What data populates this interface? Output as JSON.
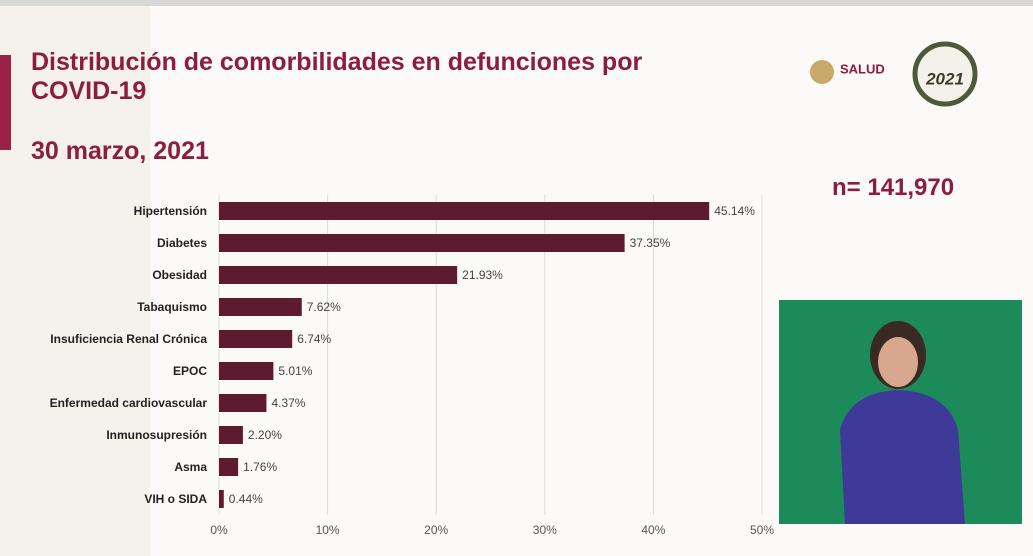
{
  "chart_data": {
    "type": "hbar",
    "title": "Distribución de comorbilidades en defunciones por COVID-19",
    "subtitle": "30 marzo, 2021",
    "annotation": "n= 141,970",
    "logo_text": "SALUD",
    "logo_year": "2021",
    "categories": [
      "Hipertensión",
      "Diabetes",
      "Obesidad",
      "Tabaquismo",
      "Insuficiencia Renal Crónica",
      "EPOC",
      "Enfermedad cardiovascular",
      "Inmunosupresión",
      "Asma",
      "VIH o SIDA"
    ],
    "values": [
      45.14,
      37.35,
      21.93,
      7.62,
      6.74,
      5.01,
      4.37,
      2.2,
      1.76,
      0.44
    ],
    "value_labels": [
      "45.14%",
      "37.35%",
      "21.93%",
      "7.62%",
      "6.74%",
      "5.01%",
      "4.37%",
      "2.20%",
      "1.76%",
      "0.44%"
    ],
    "color": "#5e1a30",
    "xlim": [
      0,
      50
    ],
    "xticks": [
      {
        "value": 0,
        "label": "0%"
      },
      {
        "value": 10,
        "label": "10%"
      },
      {
        "value": 20,
        "label": "20%"
      },
      {
        "value": 30,
        "label": "30%"
      },
      {
        "value": 40,
        "label": "40%"
      },
      {
        "value": 50,
        "label": "50%"
      }
    ],
    "grid": true
  }
}
